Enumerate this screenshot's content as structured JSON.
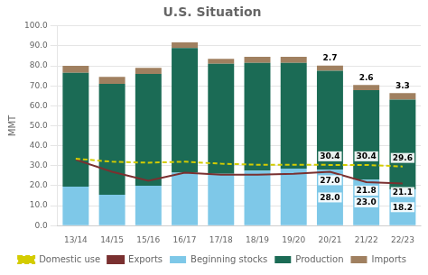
{
  "chart_data": {
    "type": "bar",
    "title": "U.S. Situation",
    "ylabel": "MMT",
    "categories": [
      "13/14",
      "14/15",
      "15/16",
      "16/17",
      "17/18",
      "18/19",
      "19/20",
      "20/21",
      "21/22",
      "22/23"
    ],
    "stacked": true,
    "series": [
      {
        "name": "Beginning stocks",
        "type": "bar",
        "color": "#7EC8E8",
        "values": [
          19.5,
          15.5,
          20.0,
          26.5,
          26.0,
          27.5,
          28.5,
          28.0,
          23.0,
          18.2
        ],
        "data_labels": true,
        "value_labels": [
          null,
          null,
          null,
          null,
          null,
          null,
          null,
          "28.0",
          "23.0",
          "18.2"
        ]
      },
      {
        "name": "Production",
        "type": "bar",
        "color": "#1B6B55",
        "values": [
          57.0,
          55.5,
          56.0,
          62.5,
          55.0,
          54.0,
          53.0,
          49.5,
          44.8,
          44.9
        ]
      },
      {
        "name": "Imports",
        "type": "bar",
        "color": "#A08060",
        "values": [
          3.5,
          3.5,
          3.0,
          2.8,
          2.5,
          3.0,
          3.0,
          2.7,
          2.6,
          3.3
        ],
        "data_labels": true,
        "value_labels": [
          null,
          null,
          null,
          null,
          null,
          null,
          null,
          "2.7",
          "2.6",
          "3.3"
        ]
      },
      {
        "name": "Domestic use",
        "type": "line",
        "color": "#D4CC00",
        "line_style": "dashed",
        "values": [
          33.5,
          32.0,
          31.5,
          32.0,
          31.0,
          30.5,
          30.5,
          30.4,
          30.4,
          29.6
        ],
        "data_labels": true,
        "value_labels": [
          null,
          null,
          null,
          null,
          null,
          null,
          null,
          "30.4",
          "30.4",
          "29.6"
        ]
      },
      {
        "name": "Exports",
        "type": "line",
        "color": "#7A3030",
        "line_style": "solid",
        "values": [
          33.0,
          27.0,
          22.5,
          26.5,
          25.5,
          25.5,
          26.0,
          27.0,
          21.8,
          21.1
        ],
        "data_labels": true,
        "value_labels": [
          null,
          null,
          null,
          null,
          null,
          null,
          null,
          "27.0",
          "21.8",
          "21.1"
        ]
      }
    ],
    "ylim": [
      0,
      100
    ],
    "yticks": [
      {
        "value": 0.0,
        "label": "0.0"
      },
      {
        "value": 10.0,
        "label": "10.0"
      },
      {
        "value": 20.0,
        "label": "20.0"
      },
      {
        "value": 30.0,
        "label": "30.0"
      },
      {
        "value": 40.0,
        "label": "40.0"
      },
      {
        "value": 50.0,
        "label": "50.0"
      },
      {
        "value": 60.0,
        "label": "60.0"
      },
      {
        "value": 70.0,
        "label": "70.0"
      },
      {
        "value": 80.0,
        "label": "80.0"
      },
      {
        "value": 90.0,
        "label": "90.0"
      },
      {
        "value": 100.0,
        "label": "100.0"
      }
    ],
    "grid": true,
    "legend": "bottom"
  }
}
